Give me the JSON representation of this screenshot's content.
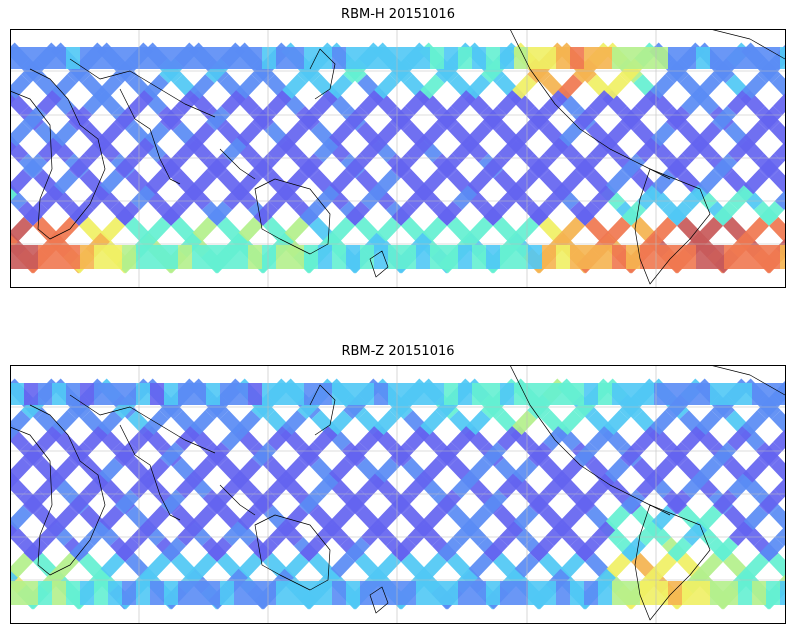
{
  "panels": [
    {
      "title": "RBM-H 20151016",
      "band": "H"
    },
    {
      "title": "RBM-Z 20151016",
      "band": "Z"
    }
  ],
  "colormap": [
    "#6464f0",
    "#5a8cf5",
    "#50c8f5",
    "#64f0d2",
    "#b4f08c",
    "#f0f064",
    "#f5b450",
    "#f07850",
    "#c85a5a"
  ],
  "land_color": "#ffffff",
  "coast_color": "#000000",
  "grid_color": "#bdbdbd"
}
